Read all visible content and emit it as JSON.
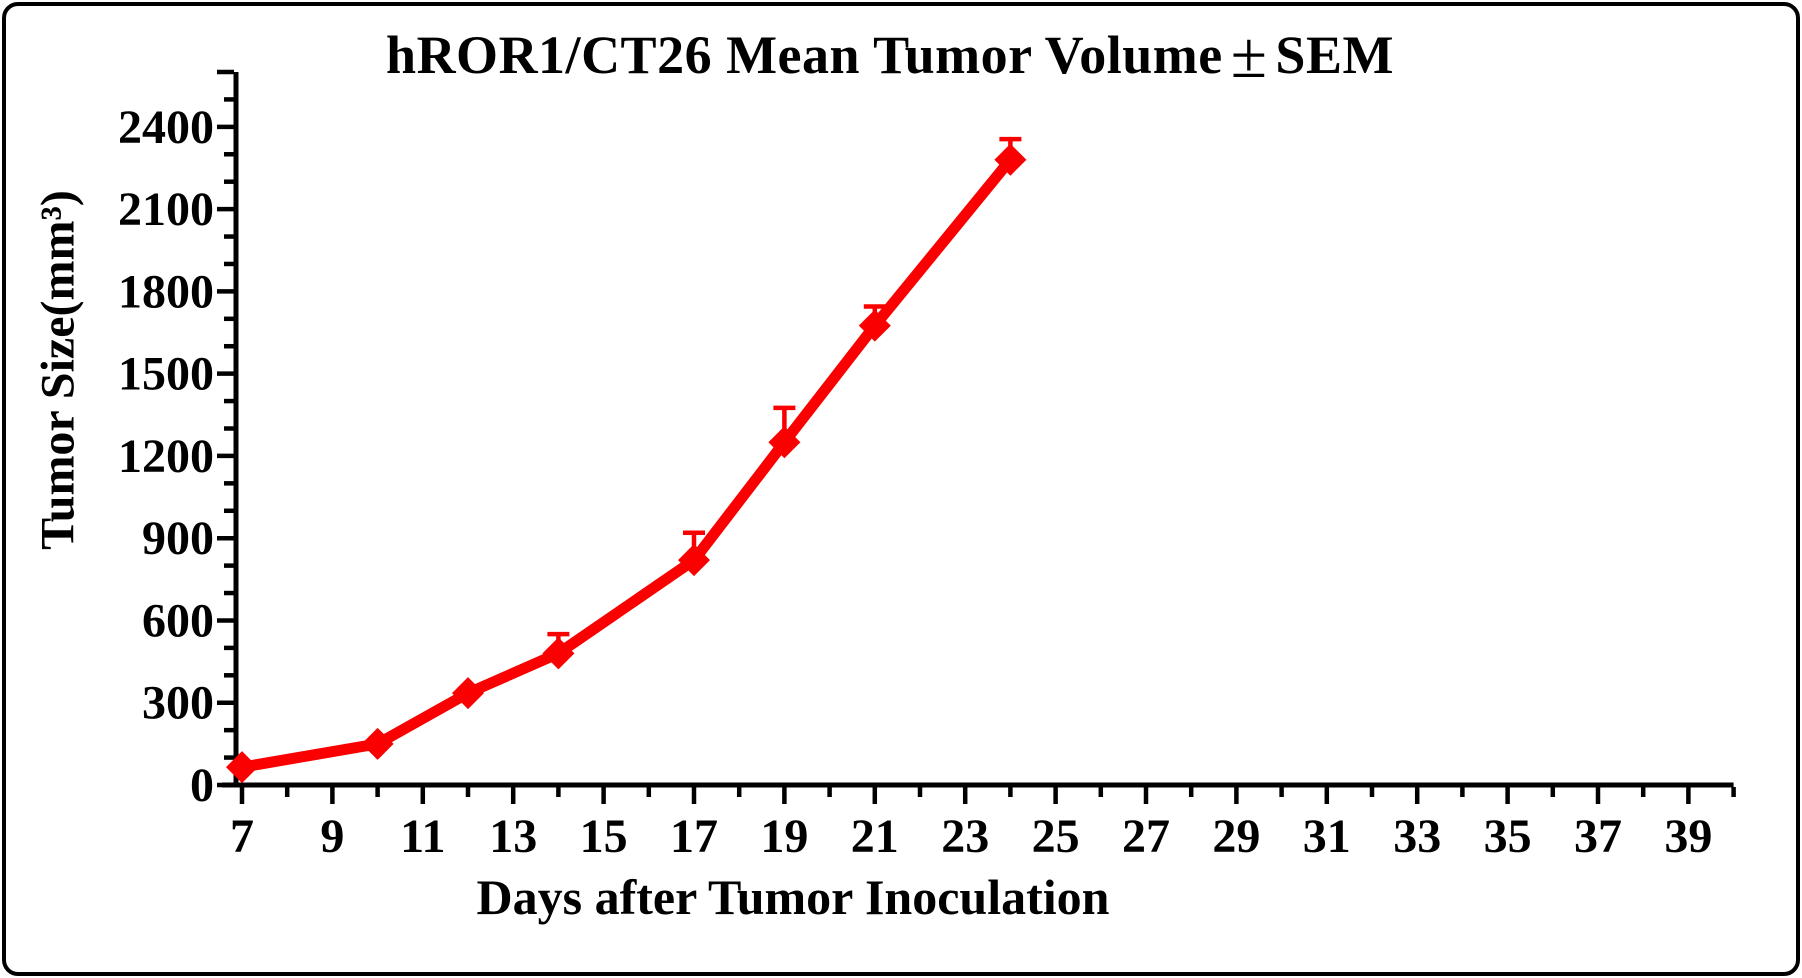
{
  "figure": {
    "title_prefix": "hROR1/CT26 Mean Tumor Volume",
    "title_pm": "±",
    "title_suffix": "SEM"
  },
  "chart_data": {
    "type": "line",
    "title": "hROR1/CT26 Mean Tumor Volume ± SEM",
    "xlabel": "Days after Tumor Inoculation",
    "ylabel": "Tumor Size(mm³)",
    "series": [
      {
        "name": "hROR1/CT26",
        "x": [
          7,
          10,
          12,
          14,
          17,
          19,
          21,
          24
        ],
        "y": [
          65,
          150,
          335,
          480,
          820,
          1250,
          1675,
          2280
        ],
        "sem": [
          0,
          0,
          0,
          70,
          100,
          125,
          70,
          75
        ]
      }
    ],
    "x_ticks": [
      7,
      9,
      11,
      13,
      15,
      17,
      19,
      21,
      23,
      25,
      27,
      29,
      31,
      33,
      35,
      37,
      39
    ],
    "y_ticks": [
      0,
      300,
      600,
      900,
      1200,
      1500,
      1800,
      2100,
      2400
    ],
    "xlim": [
      6.5,
      40
    ],
    "ylim": [
      0,
      2600
    ],
    "x_minor_step": 1,
    "y_minor_step": 100,
    "marker": "diamond",
    "error_bars": "sem-up",
    "grid": false,
    "legend": "none",
    "line_color": "#fa0000",
    "axis_color": "#000000"
  }
}
